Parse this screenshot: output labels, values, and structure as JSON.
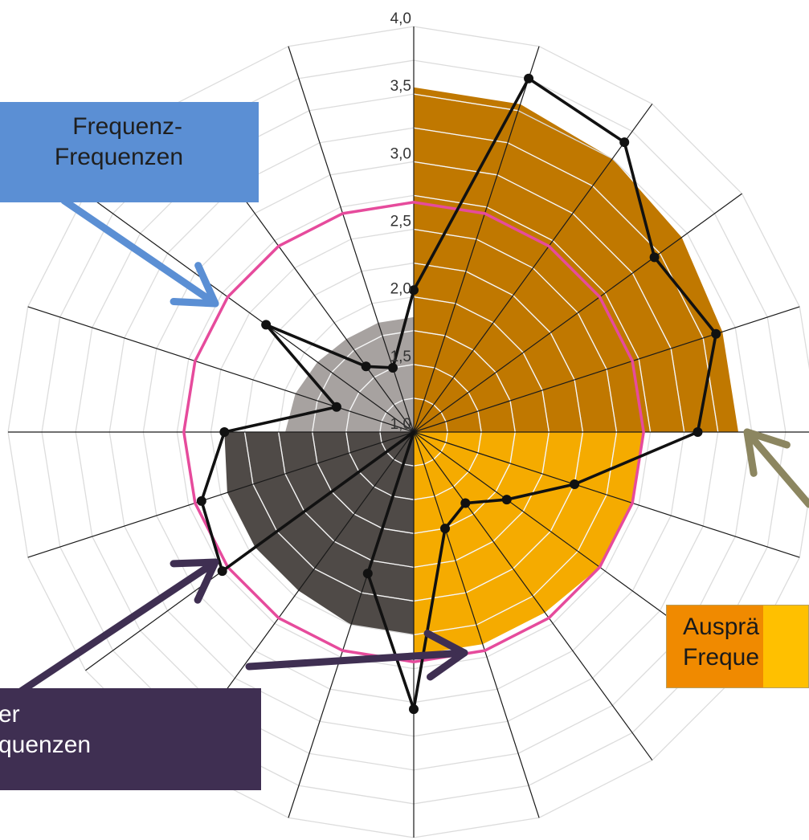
{
  "chart_data": {
    "type": "radar",
    "spokes": 20,
    "start_angle_deg": 90,
    "direction": "clockwise",
    "rlim": [
      1.0,
      4.0
    ],
    "rings": [
      1.0,
      1.25,
      1.5,
      1.75,
      2.0,
      2.25,
      2.5,
      2.75,
      3.0,
      3.25,
      3.5,
      3.75,
      4.0
    ],
    "tick_labels": [
      "1,0",
      "1,5",
      "2,0",
      "2,5",
      "3,0",
      "3,5",
      "4,0"
    ],
    "tick_values": [
      1.0,
      1.5,
      2.0,
      2.5,
      3.0,
      3.5,
      4.0
    ],
    "reference_circle": {
      "value": 2.7,
      "color": "#e64b9c"
    },
    "sectors": [
      {
        "from": 0,
        "to": 5,
        "color": "#c07800",
        "values": [
          3.55,
          3.55,
          3.5,
          3.45,
          3.4,
          3.4
        ]
      },
      {
        "from": 5,
        "to": 10,
        "color": "#f5ab00",
        "values": [
          2.7,
          2.7,
          2.7,
          2.65,
          2.65,
          2.65
        ]
      },
      {
        "from": 10,
        "to": 15,
        "color": "#4f4a47",
        "values": [
          2.5,
          2.5,
          2.45,
          2.45,
          2.45,
          2.4
        ]
      },
      {
        "from": 15,
        "to": 20,
        "color": "#a7a2a0",
        "values": [
          1.95,
          1.92,
          1.88,
          1.85,
          1.85,
          1.85
        ]
      }
    ],
    "series": [
      {
        "color": "#111111",
        "values": [
          2.05,
          3.75,
          3.65,
          3.2,
          3.35,
          3.1,
          2.25,
          1.85,
          1.65,
          1.75,
          3.05,
          2.1,
          1.0,
          2.75,
          2.65,
          2.4,
          1.6,
          2.35,
          1.6,
          1.5
        ]
      }
    ]
  },
  "annotations": {
    "blue_box": {
      "line1": "Frequenz-",
      "line2": "Frequenzen",
      "color": "#5b8fd4",
      "arrow_color": "#5b8fd4"
    },
    "orange_box": {
      "line1": "Ausprä",
      "line2": "Freque",
      "arrow_color": "#8c8660"
    },
    "purple_box": {
      "line1": "er",
      "line2": "quenzen",
      "color": "#3f2f52",
      "arrow_color": "#3f2f52"
    }
  }
}
